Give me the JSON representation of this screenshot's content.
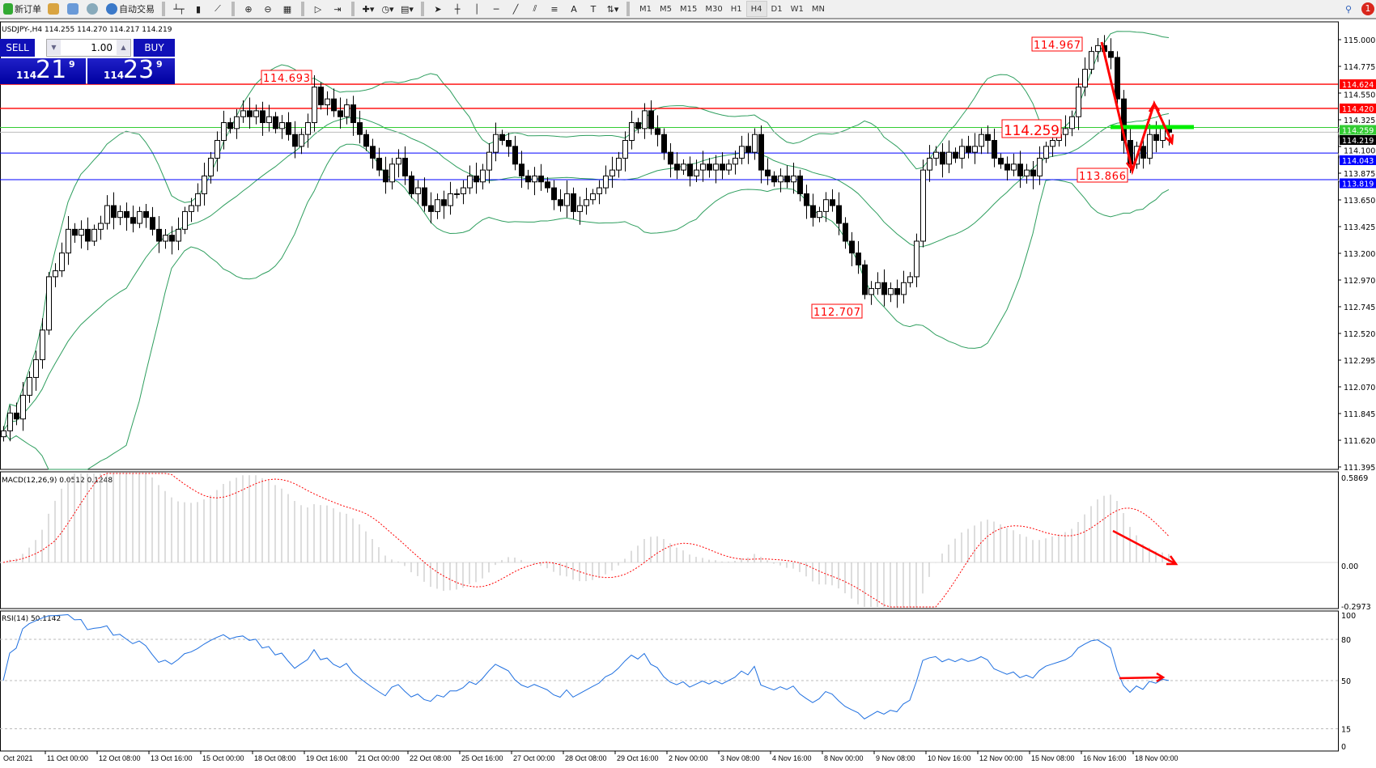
{
  "toolbar": {
    "new_order": "新订单",
    "auto_trading": "自动交易",
    "timeframes": [
      "M1",
      "M5",
      "M15",
      "M30",
      "H1",
      "H4",
      "D1",
      "W1",
      "MN"
    ],
    "active_timeframe": "H4",
    "notification_count": "1"
  },
  "chart": {
    "title": "USDJPY-,H4  114.255 114.270 114.217 114.219",
    "price_ticks": [
      "115.000",
      "114.775",
      "114.550",
      "114.325",
      "114.100",
      "113.875",
      "113.650",
      "113.425",
      "113.200",
      "112.970",
      "112.745",
      "112.520",
      "112.295",
      "112.070",
      "111.845",
      "111.620",
      "111.395"
    ],
    "time_labels": [
      "Oct 2021",
      "11 Oct 00:00",
      "12 Oct 08:00",
      "13 Oct 16:00",
      "15 Oct 00:00",
      "18 Oct 08:00",
      "19 Oct 16:00",
      "21 Oct 00:00",
      "22 Oct 08:00",
      "25 Oct 16:00",
      "27 Oct 00:00",
      "28 Oct 08:00",
      "29 Oct 16:00",
      "2 Nov 00:00",
      "3 Nov 08:00",
      "4 Nov 16:00",
      "8 Nov 00:00",
      "9 Nov 08:00",
      "10 Nov 16:00",
      "12 Nov 00:00",
      "15 Nov 08:00",
      "16 Nov 16:00",
      "18 Nov 00:00"
    ],
    "hlines": [
      {
        "price": 114.624,
        "label": "114.624",
        "color": "#ff0000"
      },
      {
        "price": 114.42,
        "label": "114.420",
        "color": "#ff0000"
      },
      {
        "price": 114.259,
        "label": "114.259",
        "color": "#33cc33"
      },
      {
        "price": 114.219,
        "label": "114.219",
        "color": "#000000"
      },
      {
        "price": 114.043,
        "label": "114.043",
        "color": "#0000ff"
      },
      {
        "price": 113.819,
        "label": "113.819",
        "color": "#0000ff"
      }
    ],
    "annotations": [
      "114.693",
      "114.967",
      "114.259",
      "113.866",
      "112.707"
    ],
    "bollinger_color": "#2e9e5e",
    "drawing_color": "#ff0000",
    "support_bar_color": "#00ee00"
  },
  "trade_panel": {
    "sell": "SELL",
    "buy": "BUY",
    "lot": "1.00",
    "bid_small": "114",
    "bid_big": "21",
    "bid_exp": "9",
    "ask_small": "114",
    "ask_big": "23",
    "ask_exp": "9"
  },
  "macd": {
    "label": "MACD(12,26,9) 0.0512 0.1248",
    "ticks": [
      "0.5869",
      "0.00",
      "-0.2973"
    ]
  },
  "rsi": {
    "label": "RSI(14) 50.1142",
    "ticks": [
      "100",
      "80",
      "50",
      "15",
      "0"
    ]
  },
  "chart_data": {
    "type": "candlestick",
    "symbol": "USDJPY",
    "timeframe": "H4",
    "ylim": [
      111.395,
      115.0
    ],
    "close": [
      111.7,
      111.85,
      111.8,
      112.0,
      112.15,
      112.3,
      112.55,
      113.0,
      113.05,
      113.2,
      113.4,
      113.35,
      113.4,
      113.3,
      113.4,
      113.45,
      113.6,
      113.5,
      113.55,
      113.5,
      113.45,
      113.55,
      113.5,
      113.4,
      113.3,
      113.35,
      113.3,
      113.4,
      113.55,
      113.6,
      113.7,
      113.85,
      114.0,
      114.15,
      114.3,
      114.25,
      114.35,
      114.4,
      114.35,
      114.4,
      114.3,
      114.35,
      114.25,
      114.3,
      114.2,
      114.1,
      114.2,
      114.3,
      114.6,
      114.45,
      114.5,
      114.4,
      114.35,
      114.45,
      114.3,
      114.2,
      114.1,
      114.0,
      113.9,
      113.8,
      113.95,
      114.0,
      113.85,
      113.7,
      113.75,
      113.6,
      113.55,
      113.65,
      113.6,
      113.7,
      113.7,
      113.75,
      113.85,
      113.8,
      113.9,
      114.05,
      114.2,
      114.15,
      114.1,
      113.95,
      113.85,
      113.8,
      113.85,
      113.8,
      113.75,
      113.65,
      113.6,
      113.7,
      113.55,
      113.6,
      113.65,
      113.7,
      113.75,
      113.85,
      113.9,
      114.0,
      114.15,
      114.3,
      114.25,
      114.4,
      114.25,
      114.2,
      114.05,
      113.95,
      113.9,
      113.95,
      113.85,
      113.9,
      113.95,
      113.9,
      113.95,
      113.9,
      113.95,
      114.0,
      114.1,
      114.05,
      114.2,
      113.9,
      113.85,
      113.8,
      113.85,
      113.8,
      113.85,
      113.7,
      113.6,
      113.5,
      113.55,
      113.65,
      113.6,
      113.45,
      113.3,
      113.2,
      113.1,
      112.85,
      112.9,
      112.95,
      112.85,
      112.9,
      112.85,
      112.95,
      113.0,
      113.3,
      113.9,
      114.0,
      114.05,
      113.95,
      114.05,
      114.0,
      114.1,
      114.05,
      114.1,
      114.2,
      114.15,
      114.0,
      113.95,
      113.9,
      113.95,
      113.85,
      113.9,
      113.85,
      114.0,
      114.1,
      114.15,
      114.2,
      114.25,
      114.35,
      114.6,
      114.75,
      114.9,
      114.95,
      114.9,
      114.85,
      114.5,
      114.15,
      113.95,
      114.1,
      114.0,
      114.2,
      114.15,
      114.25,
      114.219
    ],
    "macd_range": [
      -0.2973,
      0.5869
    ],
    "rsi_levels": [
      80,
      50,
      15
    ]
  }
}
